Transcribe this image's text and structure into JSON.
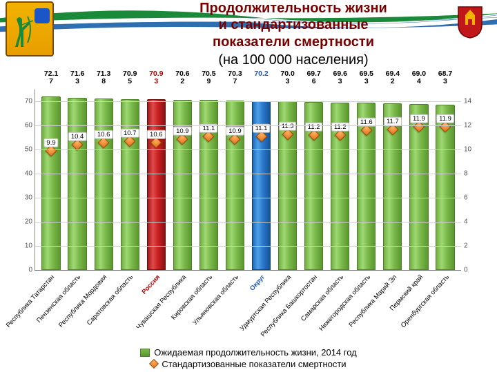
{
  "title": {
    "line1": "Продолжительность жизни",
    "line2": "и стандартизованные",
    "line3": "показатели смертности",
    "sub": "(на 100 000 населения)",
    "color_main": "#7a0000",
    "fontsize_main": 20,
    "fontsize_sub": 20
  },
  "chart": {
    "type": "bar+scatter",
    "background_color": "#ffffff",
    "grid_color": "#d0d0d0",
    "axis_color": "#888888",
    "y_left": {
      "min": 0,
      "max": 75,
      "ticks": [
        0,
        10,
        20,
        30,
        40,
        50,
        60,
        70
      ],
      "fontsize": 10,
      "color": "#555555"
    },
    "y_right": {
      "min": 0,
      "max": 15,
      "ticks": [
        0,
        2,
        4,
        6,
        8,
        10,
        12,
        14
      ],
      "fontsize": 10,
      "color": "#555555"
    },
    "bar_width": 0.8,
    "bar_label_fontsize": 10.5,
    "marker_label_fontsize": 9.5,
    "xlabel_fontsize": 9.5,
    "xlabel_angle": -48,
    "colors": {
      "bar_default": "#7ab84a",
      "bar_default_border": "#4e7f28",
      "bar_russia": "#c82020",
      "bar_okrug": "#2a78cc",
      "marker": "#e07018",
      "marker_border": "#a04a00",
      "label_russia": "#b00000",
      "label_okrug": "#1a56c8",
      "label_default": "#000000"
    },
    "categories": [
      {
        "key": "tatarstan",
        "label": "Республика Татарстан",
        "bar": 72.17,
        "bar_label": "72.17",
        "marker": 9.9,
        "marker_label": "9.9",
        "highlight": null,
        "label_color": "#000000"
      },
      {
        "key": "penza",
        "label": "Пензенская область",
        "bar": 71.63,
        "bar_label": "71.63",
        "marker": 10.4,
        "marker_label": "10.4",
        "highlight": null,
        "label_color": "#000000"
      },
      {
        "key": "mordovia",
        "label": "Республика Мордовия",
        "bar": 71.38,
        "bar_label": "71.38",
        "marker": 10.6,
        "marker_label": "10.6",
        "highlight": null,
        "label_color": "#000000"
      },
      {
        "key": "saratov",
        "label": "Саратовская область",
        "bar": 70.95,
        "bar_label": "70.95",
        "marker": 10.7,
        "marker_label": "10.7",
        "highlight": null,
        "label_color": "#000000"
      },
      {
        "key": "russia",
        "label": "Россия",
        "bar": 70.93,
        "bar_label": "70.93",
        "marker": 10.6,
        "marker_label": "10.6",
        "highlight": "russia",
        "label_color": "#b00000"
      },
      {
        "key": "chuvashia",
        "label": "Чувашская Республика",
        "bar": 70.62,
        "bar_label": "70.62",
        "marker": 10.9,
        "marker_label": "10.9",
        "highlight": null,
        "label_color": "#000000"
      },
      {
        "key": "kirov",
        "label": "Кировская область",
        "bar": 70.59,
        "bar_label": "70.59",
        "marker": 11.1,
        "marker_label": "11.1",
        "highlight": null,
        "label_color": "#000000"
      },
      {
        "key": "ulyanovsk",
        "label": "Ульяновская область",
        "bar": 70.37,
        "bar_label": "70.37",
        "marker": 10.9,
        "marker_label": "10.9",
        "highlight": null,
        "label_color": "#000000"
      },
      {
        "key": "okrug",
        "label": "Округ",
        "bar": 70.2,
        "bar_label": "70.2",
        "marker": 11.1,
        "marker_label": "11.1",
        "highlight": "okrug",
        "label_color": "#1a56c8"
      },
      {
        "key": "udmurtia",
        "label": "Удмуртская Республика",
        "bar": 70.03,
        "bar_label": "70.03",
        "marker": 11.3,
        "marker_label": "11.3",
        "highlight": null,
        "label_color": "#000000"
      },
      {
        "key": "bashkortostan",
        "label": "Республика Башкортостан",
        "bar": 69.76,
        "bar_label": "69.76",
        "marker": 11.2,
        "marker_label": "11.2",
        "highlight": null,
        "label_color": "#000000"
      },
      {
        "key": "samara",
        "label": "Самарская область",
        "bar": 69.63,
        "bar_label": "69.63",
        "marker": 11.2,
        "marker_label": "11.2",
        "highlight": null,
        "label_color": "#000000"
      },
      {
        "key": "nizhny",
        "label": "Нижегородская область",
        "bar": 69.53,
        "bar_label": "69.53",
        "marker": 11.6,
        "marker_label": "11.6",
        "highlight": null,
        "label_color": "#000000"
      },
      {
        "key": "mariel",
        "label": "Республика Марий Эл",
        "bar": 69.42,
        "bar_label": "69.42",
        "marker": 11.7,
        "marker_label": "11.7",
        "highlight": null,
        "label_color": "#000000"
      },
      {
        "key": "perm",
        "label": "Пермский край",
        "bar": 69.04,
        "bar_label": "69.04",
        "marker": 11.9,
        "marker_label": "11.9",
        "highlight": null,
        "label_color": "#000000"
      },
      {
        "key": "orenburg",
        "label": "Оренбургская область",
        "bar": 68.73,
        "bar_label": "68.73",
        "marker": 11.9,
        "marker_label": "11.9",
        "highlight": null,
        "label_color": "#000000"
      }
    ]
  },
  "legend": {
    "series_bar": "Ожидаемая продолжительность жизни, 2014 год",
    "series_marker": "Стандартизованные показатели смертности",
    "fontsize": 13
  }
}
